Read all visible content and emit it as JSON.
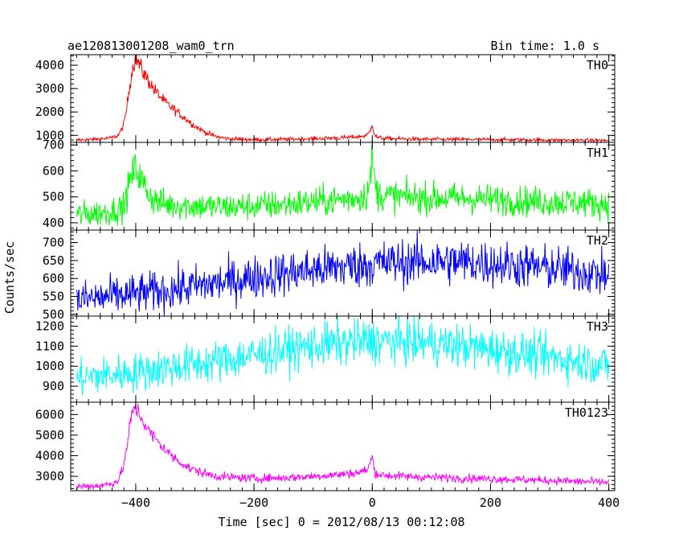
{
  "chart_data": {
    "type": "line",
    "title": "ae120813001208_wam0_trn",
    "title_right": "Bin time: 1.0 s",
    "xlabel": "Time [sec] 0 = 2012/08/13 00:12:08",
    "ylabel": "Counts/sec",
    "xlim": [
      -510,
      410
    ],
    "x_ticks": [
      -400,
      -200,
      0,
      200,
      400
    ],
    "x_tick_labels": [
      "−400",
      "−200",
      "0",
      "200",
      "400"
    ],
    "panels": [
      {
        "name": "TH0",
        "color": "#ff0000",
        "ylim": [
          700,
          4450
        ],
        "y_ticks": [
          1000,
          2000,
          3000,
          4000
        ],
        "series": [
          {
            "x": [
              -500,
              -480,
              -460,
              -440,
              -430,
              -425,
              -420,
              -415,
              -410,
              -405,
              -402,
              -400,
              -395,
              -390,
              -380,
              -370,
              -360,
              -350,
              -340,
              -330,
              -320,
              -310,
              -300,
              -290,
              -280,
              -270,
              -260,
              -250,
              -240,
              -200,
              -150,
              -100,
              -50,
              -20,
              -10,
              -5,
              -2,
              0,
              2,
              5,
              10,
              20,
              50,
              100,
              200,
              300,
              400
            ],
            "y": [
              800,
              820,
              850,
              900,
              1000,
              1200,
              1500,
              2200,
              3200,
              3900,
              4200,
              4300,
              4100,
              3800,
              3400,
              3000,
              2700,
              2400,
              2200,
              2000,
              1800,
              1600,
              1400,
              1250,
              1100,
              1000,
              930,
              880,
              850,
              820,
              830,
              860,
              900,
              950,
              1000,
              1100,
              1300,
              1550,
              1200,
              1000,
              900,
              870,
              850,
              830,
              820,
              800,
              780
            ],
            "noise": 0.05
          }
        ]
      },
      {
        "name": "TH1",
        "color": "#00ff00",
        "ylim": [
          372,
          710
        ],
        "y_ticks": [
          400,
          500,
          600,
          700
        ],
        "series": [
          {
            "x": [
              -500,
              -450,
              -420,
              -410,
              -400,
              -395,
              -390,
              -380,
              -370,
              -350,
              -300,
              -250,
              -200,
              -150,
              -100,
              -50,
              -20,
              -10,
              -5,
              0,
              5,
              10,
              20,
              50,
              100,
              150,
              200,
              250,
              300,
              350,
              400
            ],
            "y": [
              430,
              440,
              460,
              560,
              610,
              590,
              560,
              520,
              490,
              470,
              465,
              460,
              465,
              470,
              480,
              490,
              500,
              510,
              540,
              650,
              540,
              510,
              505,
              500,
              495,
              495,
              490,
              485,
              480,
              480,
              470
            ],
            "noise": 0.06
          }
        ]
      },
      {
        "name": "TH2",
        "color": "#0000ff",
        "ylim": [
          495,
          735
        ],
        "y_ticks": [
          500,
          550,
          600,
          650,
          700
        ],
        "series": [
          {
            "x": [
              -500,
              -450,
              -400,
              -350,
              -300,
              -250,
              -200,
              -150,
              -100,
              -50,
              0,
              50,
              100,
              150,
              200,
              250,
              300,
              350,
              400
            ],
            "y": [
              540,
              548,
              557,
              566,
              578,
              590,
              603,
              614,
              624,
              633,
              641,
              645,
              647,
              646,
              642,
              636,
              629,
              620,
              608
            ],
            "noise": 0.05
          }
        ]
      },
      {
        "name": "TH3",
        "color": "#00ffff",
        "ylim": [
          820,
          1250
        ],
        "y_ticks": [
          900,
          1000,
          1100,
          1200
        ],
        "series": [
          {
            "x": [
              -500,
              -450,
              -400,
              -350,
              -300,
              -250,
              -200,
              -150,
              -100,
              -50,
              0,
              50,
              100,
              150,
              200,
              250,
              300,
              350,
              400
            ],
            "y": [
              940,
              955,
              970,
              990,
              1010,
              1030,
              1055,
              1080,
              1100,
              1115,
              1125,
              1122,
              1115,
              1100,
              1085,
              1065,
              1045,
              1025,
              1000
            ],
            "noise": 0.05
          }
        ]
      },
      {
        "name": "TH0123",
        "color": "#ff00ff",
        "ylim": [
          2300,
          6600
        ],
        "y_ticks": [
          3000,
          4000,
          5000,
          6000
        ],
        "series": [
          {
            "x": [
              -500,
              -480,
              -460,
              -440,
              -430,
              -425,
              -420,
              -415,
              -410,
              -405,
              -402,
              -400,
              -395,
              -390,
              -380,
              -370,
              -360,
              -350,
              -340,
              -330,
              -320,
              -310,
              -300,
              -280,
              -260,
              -240,
              -200,
              -150,
              -100,
              -50,
              -20,
              -10,
              -5,
              -2,
              0,
              2,
              5,
              10,
              20,
              50,
              100,
              200,
              300,
              400
            ],
            "y": [
              2500,
              2520,
              2550,
              2650,
              2800,
              3100,
              3600,
              4400,
              5500,
              6100,
              6300,
              6350,
              6100,
              5800,
              5300,
              4900,
              4600,
              4300,
              4000,
              3800,
              3600,
              3400,
              3300,
              3100,
              3000,
              2950,
              2900,
              2930,
              3000,
              3100,
              3200,
              3300,
              3500,
              3800,
              4000,
              3500,
              3200,
              3100,
              3050,
              3000,
              2950,
              2880,
              2800,
              2700
            ],
            "noise": 0.035
          }
        ]
      }
    ]
  }
}
